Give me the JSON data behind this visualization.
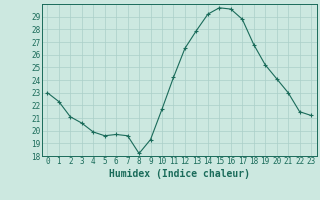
{
  "x": [
    0,
    1,
    2,
    3,
    4,
    5,
    6,
    7,
    8,
    9,
    10,
    11,
    12,
    13,
    14,
    15,
    16,
    17,
    18,
    19,
    20,
    21,
    22,
    23
  ],
  "y": [
    23.0,
    22.3,
    21.1,
    20.6,
    19.9,
    19.6,
    19.7,
    19.6,
    18.2,
    19.3,
    21.7,
    24.2,
    26.5,
    27.9,
    29.2,
    29.7,
    29.6,
    28.8,
    26.8,
    25.2,
    24.1,
    23.0,
    21.5,
    21.2
  ],
  "line_color": "#1a6b5a",
  "marker": "+",
  "marker_size": 3,
  "marker_lw": 0.8,
  "line_width": 0.8,
  "bg_color": "#cce8e0",
  "grid_color": "#aacfc8",
  "xlabel": "Humidex (Indice chaleur)",
  "xlim": [
    -0.5,
    23.5
  ],
  "ylim": [
    18,
    30
  ],
  "yticks": [
    18,
    19,
    20,
    21,
    22,
    23,
    24,
    25,
    26,
    27,
    28,
    29
  ],
  "xticks": [
    0,
    1,
    2,
    3,
    4,
    5,
    6,
    7,
    8,
    9,
    10,
    11,
    12,
    13,
    14,
    15,
    16,
    17,
    18,
    19,
    20,
    21,
    22,
    23
  ],
  "tick_color": "#1a6b5a",
  "label_color": "#1a6b5a",
  "spine_color": "#1a6b5a",
  "tick_fontsize": 5.5,
  "xlabel_fontsize": 7.0
}
